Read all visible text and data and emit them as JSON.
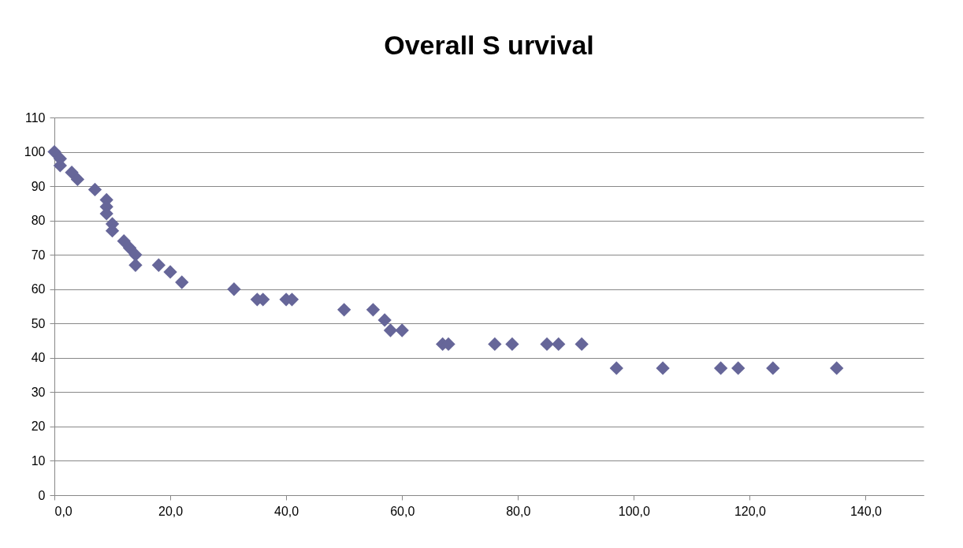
{
  "chart_data": {
    "type": "scatter",
    "title": "Overall S urvival",
    "x": [
      0,
      1,
      1,
      3,
      4,
      7,
      9,
      9,
      9,
      10,
      10,
      12,
      13,
      14,
      14,
      18,
      20,
      22,
      31,
      35,
      36,
      40,
      41,
      50,
      55,
      57,
      58,
      60,
      67,
      68,
      76,
      79,
      85,
      87,
      91,
      97,
      105,
      115,
      118,
      124,
      135
    ],
    "series": [
      {
        "color": "#666699",
        "values": [
          100,
          98,
          96,
          94,
          92,
          89,
          86,
          84,
          82,
          79,
          77,
          74,
          72,
          70,
          67,
          67,
          65,
          62,
          60,
          57,
          57,
          57,
          57,
          54,
          54,
          51,
          48,
          48,
          44,
          44,
          44,
          44,
          44,
          44,
          44,
          37,
          37,
          37,
          37,
          37,
          37
        ]
      }
    ],
    "marker": "diamond",
    "grid": "y",
    "xlim": [
      0,
      150
    ],
    "xticks": [
      {
        "value": 0,
        "label": "0,0"
      },
      {
        "value": 20,
        "label": "20,0"
      },
      {
        "value": 40,
        "label": "40,0"
      },
      {
        "value": 60,
        "label": "60,0"
      },
      {
        "value": 80,
        "label": "80,0"
      },
      {
        "value": 100,
        "label": "100,0"
      },
      {
        "value": 120,
        "label": "120,0"
      },
      {
        "value": 140,
        "label": "140,0"
      }
    ],
    "ylim": [
      0,
      110
    ],
    "yticks": [
      0,
      10,
      20,
      30,
      40,
      50,
      60,
      70,
      80,
      90,
      100,
      110
    ]
  }
}
